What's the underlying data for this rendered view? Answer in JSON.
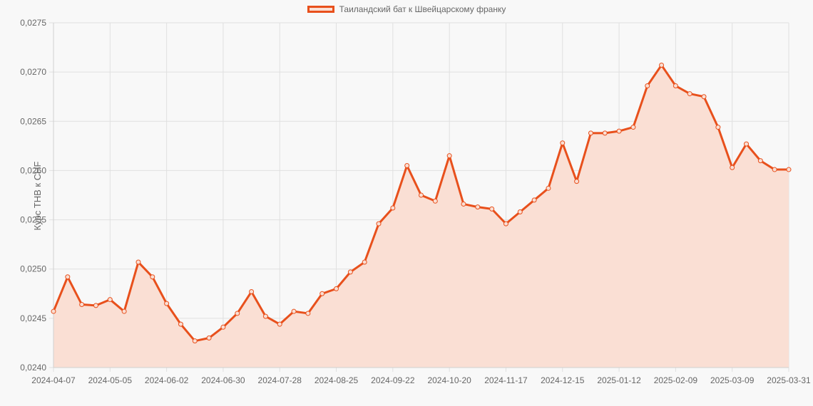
{
  "legend": {
    "label": "Таиландский бат к Швейцарскому франку",
    "border_color": "#e8501c",
    "fill_color": "#fadfd4"
  },
  "axes": {
    "ylabel": "Курс THB к CHF",
    "y_ticks": [
      "0,0275",
      "0,0270",
      "0,0265",
      "0,0260",
      "0,0255",
      "0,0250",
      "0,0245",
      "0,0240"
    ],
    "x_ticks": [
      "2024-04-07",
      "2024-05-05",
      "2024-06-02",
      "2024-06-30",
      "2024-07-28",
      "2024-08-25",
      "2024-09-22",
      "2024-10-20",
      "2024-11-17",
      "2024-12-15",
      "2025-01-12",
      "2025-02-09",
      "2025-03-09",
      "2025-03-31"
    ]
  },
  "chart_data": {
    "type": "area",
    "title": "",
    "xlabel": "",
    "ylabel": "Курс THB к CHF",
    "ylim": [
      0.024,
      0.0275
    ],
    "grid": true,
    "legend_position": "top",
    "x": [
      "2024-04-07",
      "2024-04-14",
      "2024-04-21",
      "2024-04-28",
      "2024-05-05",
      "2024-05-12",
      "2024-05-19",
      "2024-05-26",
      "2024-06-02",
      "2024-06-09",
      "2024-06-16",
      "2024-06-23",
      "2024-06-30",
      "2024-07-07",
      "2024-07-14",
      "2024-07-21",
      "2024-07-28",
      "2024-08-04",
      "2024-08-11",
      "2024-08-18",
      "2024-08-25",
      "2024-09-01",
      "2024-09-08",
      "2024-09-15",
      "2024-09-22",
      "2024-09-29",
      "2024-10-06",
      "2024-10-13",
      "2024-10-20",
      "2024-10-27",
      "2024-11-03",
      "2024-11-10",
      "2024-11-17",
      "2024-11-24",
      "2024-12-01",
      "2024-12-08",
      "2024-12-15",
      "2024-12-22",
      "2024-12-29",
      "2025-01-05",
      "2025-01-12",
      "2025-01-19",
      "2025-01-26",
      "2025-02-02",
      "2025-02-09",
      "2025-02-16",
      "2025-02-23",
      "2025-03-02",
      "2025-03-09",
      "2025-03-16",
      "2025-03-23",
      "2025-03-30",
      "2025-03-31"
    ],
    "series": [
      {
        "name": "Таиландский бат к Швейцарскому франку",
        "color": "#e8501c",
        "fill": "#fadfd4",
        "values": [
          0.02457,
          0.02492,
          0.02464,
          0.02463,
          0.02469,
          0.02457,
          0.02507,
          0.02492,
          0.02465,
          0.02444,
          0.02427,
          0.0243,
          0.02441,
          0.02455,
          0.02477,
          0.02452,
          0.02444,
          0.02457,
          0.02455,
          0.02475,
          0.0248,
          0.02497,
          0.02507,
          0.02546,
          0.02562,
          0.02605,
          0.02575,
          0.02569,
          0.02615,
          0.02566,
          0.02563,
          0.02561,
          0.02546,
          0.02558,
          0.0257,
          0.02582,
          0.02628,
          0.02589,
          0.02638,
          0.02638,
          0.0264,
          0.02644,
          0.02686,
          0.02707,
          0.02686,
          0.02678,
          0.02675,
          0.02644,
          0.02603,
          0.02627,
          0.0261,
          0.02601,
          0.02601
        ]
      }
    ]
  }
}
